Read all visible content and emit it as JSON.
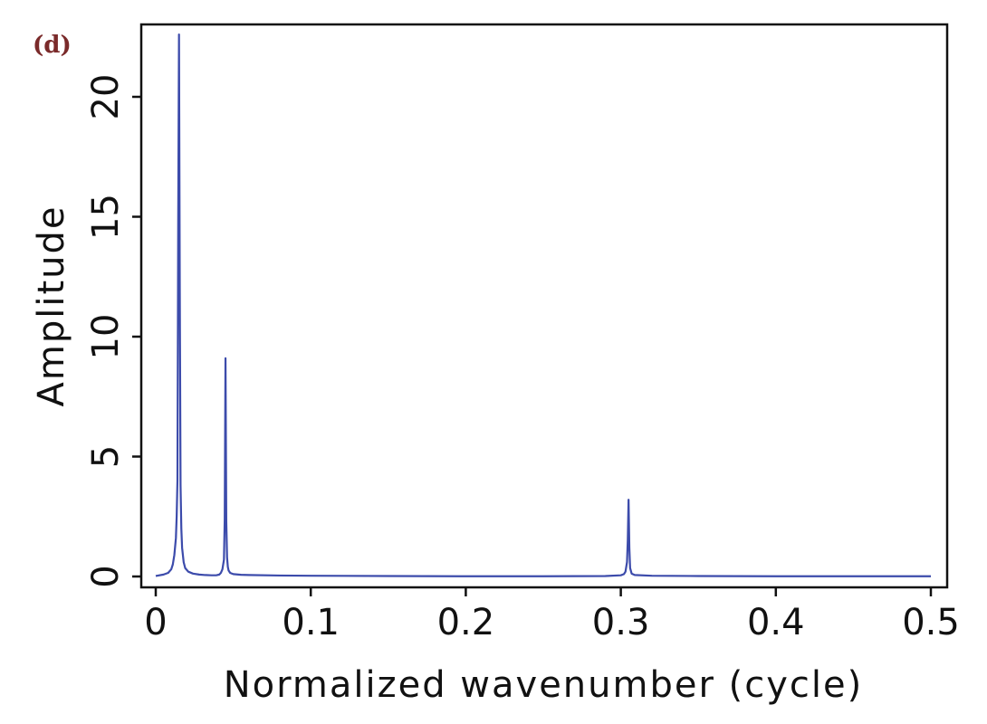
{
  "panel_label": "(d)",
  "chart_data": {
    "type": "line",
    "title": "",
    "xlabel": "Normalized wavenumber (cycle)",
    "ylabel": "Amplitude",
    "xlim": [
      0,
      0.5
    ],
    "ylim": [
      0,
      23
    ],
    "xticks": [
      0,
      0.1,
      0.2,
      0.3,
      0.4,
      0.5
    ],
    "xtick_labels": [
      "0",
      "0.1",
      "0.2",
      "0.3",
      "0.4",
      "0.5"
    ],
    "yticks": [
      0,
      5,
      10,
      15,
      20
    ],
    "ytick_labels": [
      "0",
      "5",
      "10",
      "15",
      "20"
    ],
    "grid": false,
    "line_color": "#3c4bab",
    "series": [
      {
        "x": [
          0,
          0.005,
          0.008,
          0.01,
          0.011,
          0.012,
          0.013,
          0.0135,
          0.014,
          0.0145,
          0.015,
          0.0155,
          0.016,
          0.0165,
          0.017,
          0.018,
          0.019,
          0.021,
          0.024,
          0.028,
          0.032,
          0.036,
          0.039,
          0.041,
          0.042,
          0.043,
          0.044,
          0.0445,
          0.045,
          0.0455,
          0.046,
          0.0465,
          0.047,
          0.048,
          0.05,
          0.055,
          0.06,
          0.08,
          0.1,
          0.15,
          0.2,
          0.25,
          0.29,
          0.3,
          0.302,
          0.303,
          0.304,
          0.3045,
          0.305,
          0.3055,
          0.306,
          0.307,
          0.309,
          0.32,
          0.35,
          0.4,
          0.45,
          0.5
        ],
        "y": [
          0.02,
          0.08,
          0.15,
          0.3,
          0.5,
          0.9,
          1.6,
          2.5,
          4.0,
          14.8,
          22.6,
          12.0,
          3.8,
          2.0,
          1.2,
          0.6,
          0.35,
          0.2,
          0.12,
          0.08,
          0.06,
          0.05,
          0.05,
          0.08,
          0.15,
          0.3,
          0.7,
          2.4,
          9.1,
          2.3,
          0.8,
          0.4,
          0.25,
          0.15,
          0.1,
          0.07,
          0.06,
          0.04,
          0.03,
          0.02,
          0.01,
          0.01,
          0.02,
          0.05,
          0.1,
          0.2,
          0.6,
          1.5,
          3.2,
          1.2,
          0.35,
          0.12,
          0.06,
          0.03,
          0.02,
          0.01,
          0.01,
          0.01
        ]
      }
    ]
  }
}
